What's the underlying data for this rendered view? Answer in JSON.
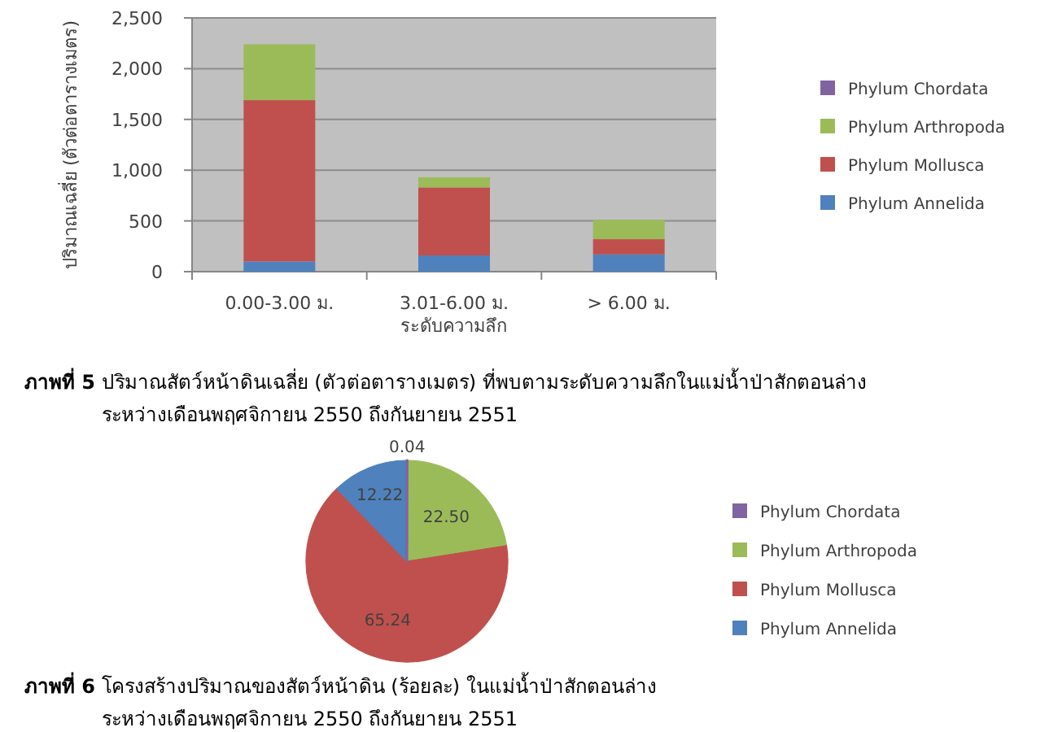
{
  "chart_data": [
    {
      "type": "bar",
      "stacked": true,
      "title": "**ภาพที่ 5** ปริมาณสัตว์หน้าดินเฉลี่ย (ตัวต่อตารางเมตร) ที่พบตามระดับความลึกในแม่น้ำป่าสักตอนล่าง",
      "subtitle": "ระหว่างเดือนพฤศจิกายน 2550 ถึงกันยายน 2551",
      "xlabel": "ระดับความลึก",
      "ylabel": "ปริมาณเฉลี่ย (ตัวต่อตารางเมตร)",
      "categories": [
        "0.00-3.00 ม.",
        "3.01-6.00 ม.",
        "> 6.00 ม."
      ],
      "series": [
        {
          "name": "Phylum Annelida",
          "color": "#4f81bd",
          "values": [
            100,
            160,
            170
          ]
        },
        {
          "name": "Phylum Mollusca",
          "color": "#c0504d",
          "values": [
            1590,
            670,
            150
          ]
        },
        {
          "name": "Phylum Arthropoda",
          "color": "#9bbb59",
          "values": [
            550,
            100,
            190
          ]
        },
        {
          "name": "Phylum Chordata",
          "color": "#8064a2",
          "values": [
            0,
            0,
            0
          ]
        }
      ],
      "ylim": [
        0,
        2500
      ],
      "yticks": [
        0,
        500,
        {
          "value": 1000,
          "label": "1,000"
        },
        {
          "value": 1500,
          "label": "1,500"
        },
        {
          "value": 2000,
          "label": "2,000"
        },
        {
          "value": 2500,
          "label": "2,500"
        }
      ],
      "grid": "y",
      "legend": "right"
    },
    {
      "type": "pie",
      "title": "**ภาพที่ 6** โครงสร้างปริมาณของสัตว์หน้าดิน (ร้อยละ) ในแม่น้ำป่าสักตอนล่าง",
      "subtitle": "ระหว่างเดือนพฤศจิกายน 2550 ถึงกันยายน 2551",
      "categories": [
        "Phylum Chordata",
        "Phylum Arthropoda",
        "Phylum Mollusca",
        "Phylum Annelida"
      ],
      "values": [
        0.04,
        22.5,
        65.24,
        12.22
      ],
      "colors": [
        "#8064a2",
        "#9bbb59",
        "#c0504d",
        "#4f81bd"
      ],
      "value_labels": [
        "0.04",
        "22.50",
        "65.24",
        "12.22"
      ],
      "legend": "right"
    }
  ]
}
